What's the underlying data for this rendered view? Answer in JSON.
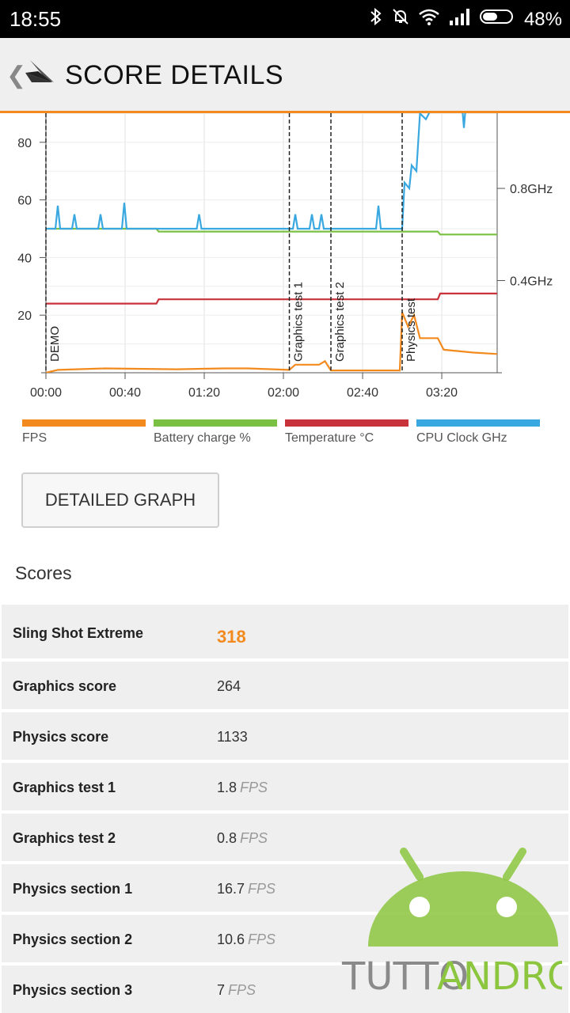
{
  "status_bar": {
    "time": "18:55",
    "battery_percent": "48%"
  },
  "app_bar": {
    "back_icon": "chevron-left-icon",
    "logo_icon": "3dmark-logo-icon",
    "title": "SCORE DETAILS"
  },
  "chart_data": {
    "type": "line",
    "x_ticks": [
      "00:00",
      "00:40",
      "01:20",
      "02:00",
      "02:40",
      "03:20"
    ],
    "y_left_ticks": [
      "80",
      "60",
      "40",
      "20"
    ],
    "y_right_ticks": [
      "0.8GHz",
      "0.4GHz"
    ],
    "y_left_range": [
      0,
      90
    ],
    "x_range_minutes": [
      0,
      3.8
    ],
    "markers": [
      {
        "label": "DEMO",
        "x": 0.0
      },
      {
        "label": "Graphics test 1",
        "x": 2.05
      },
      {
        "label": "Graphics test 2",
        "x": 2.4
      },
      {
        "label": "Physics test",
        "x": 3.0
      }
    ],
    "series": [
      {
        "name": "FPS",
        "color": "#f28a1e",
        "points": [
          [
            0,
            0
          ],
          [
            0.1,
            1
          ],
          [
            0.5,
            1.5
          ],
          [
            1.1,
            1.2
          ],
          [
            1.5,
            1.5
          ],
          [
            1.7,
            1.5
          ],
          [
            2.05,
            1
          ],
          [
            2.1,
            2.8
          ],
          [
            2.3,
            2.8
          ],
          [
            2.35,
            4
          ],
          [
            2.4,
            0.8
          ],
          [
            2.7,
            0.8
          ],
          [
            2.98,
            0.8
          ],
          [
            3.0,
            21
          ],
          [
            3.05,
            16
          ],
          [
            3.1,
            20
          ],
          [
            3.15,
            12
          ],
          [
            3.3,
            12
          ],
          [
            3.35,
            8
          ],
          [
            3.6,
            7
          ],
          [
            3.8,
            6.5
          ]
        ]
      },
      {
        "name": "Battery charge %",
        "color": "#7ac143",
        "points": [
          [
            0,
            50
          ],
          [
            0.93,
            50
          ],
          [
            0.95,
            49
          ],
          [
            3.3,
            49
          ],
          [
            3.32,
            48
          ],
          [
            3.8,
            48
          ]
        ]
      },
      {
        "name": "Temperature °C",
        "color": "#c8323a",
        "points": [
          [
            0,
            24
          ],
          [
            0.93,
            24
          ],
          [
            0.95,
            25.5
          ],
          [
            2.0,
            25.5
          ],
          [
            2.4,
            25.5
          ],
          [
            3.0,
            25.5
          ],
          [
            3.3,
            25.5
          ],
          [
            3.32,
            27.5
          ],
          [
            3.8,
            27.5
          ]
        ]
      },
      {
        "name": "CPU Clock GHz",
        "color": "#3aa8e0",
        "points": [
          [
            0,
            50
          ],
          [
            0.08,
            50
          ],
          [
            0.1,
            58
          ],
          [
            0.12,
            50
          ],
          [
            0.22,
            50
          ],
          [
            0.24,
            55
          ],
          [
            0.26,
            50
          ],
          [
            0.44,
            50
          ],
          [
            0.46,
            55
          ],
          [
            0.48,
            50
          ],
          [
            0.64,
            50
          ],
          [
            0.66,
            59
          ],
          [
            0.68,
            50
          ],
          [
            1.27,
            50
          ],
          [
            1.29,
            55
          ],
          [
            1.31,
            50
          ],
          [
            2.08,
            50
          ],
          [
            2.1,
            55
          ],
          [
            2.12,
            50
          ],
          [
            2.22,
            50
          ],
          [
            2.24,
            55
          ],
          [
            2.26,
            50
          ],
          [
            2.3,
            50
          ],
          [
            2.32,
            55
          ],
          [
            2.34,
            50
          ],
          [
            2.78,
            50
          ],
          [
            2.8,
            58
          ],
          [
            2.82,
            50
          ],
          [
            3.0,
            50
          ],
          [
            3.02,
            66
          ],
          [
            3.06,
            64
          ],
          [
            3.08,
            72
          ],
          [
            3.12,
            70
          ],
          [
            3.15,
            90
          ],
          [
            3.2,
            88
          ],
          [
            3.25,
            92
          ],
          [
            3.3,
            95
          ],
          [
            3.5,
            95
          ],
          [
            3.52,
            85
          ],
          [
            3.54,
            95
          ],
          [
            3.8,
            95
          ]
        ]
      }
    ]
  },
  "legend": [
    {
      "label": "FPS",
      "color": "#f28a1e"
    },
    {
      "label": "Battery charge %",
      "color": "#7ac143"
    },
    {
      "label": "Temperature °C",
      "color": "#c8323a"
    },
    {
      "label": "CPU Clock GHz",
      "color": "#3aa8e0"
    }
  ],
  "detailed_graph_button": "DETAILED GRAPH",
  "scores_heading": "Scores",
  "scores": [
    {
      "name": "Sling Shot Extreme",
      "value": "318",
      "unit": ""
    },
    {
      "name": "Graphics score",
      "value": "264",
      "unit": ""
    },
    {
      "name": "Physics score",
      "value": "1133",
      "unit": ""
    },
    {
      "name": "Graphics test 1",
      "value": "1.8",
      "unit": "FPS"
    },
    {
      "name": "Graphics test 2",
      "value": "0.8",
      "unit": "FPS"
    },
    {
      "name": "Physics section 1",
      "value": "16.7",
      "unit": "FPS"
    },
    {
      "name": "Physics section 2",
      "value": "10.6",
      "unit": "FPS"
    },
    {
      "name": "Physics section 3",
      "value": "7",
      "unit": "FPS"
    }
  ],
  "watermark": {
    "text_part1": "TUTTO",
    "text_part2": "ANDROID",
    "color_gray": "#8a8a8a",
    "color_green": "#8cc63f"
  }
}
